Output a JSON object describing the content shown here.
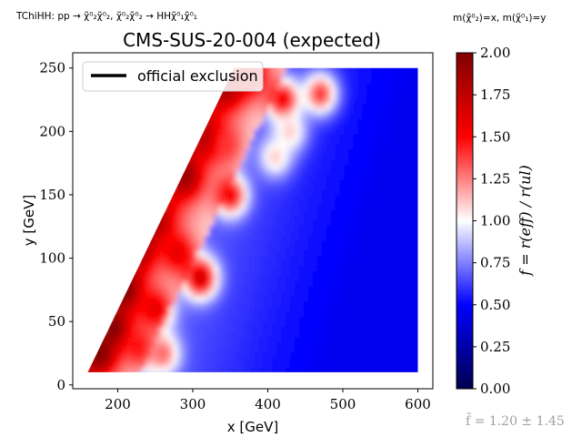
{
  "header": {
    "process_label": "TChiHH: pp → χ̃⁰₂χ̃⁰₂, χ̃⁰₂χ̃⁰₂ → HHχ̃⁰₁χ̃⁰₁",
    "mass_label": "m(χ̃⁰₂)=x, m(χ̃⁰₁)=y"
  },
  "footer": {
    "stat_label": "f̄ = 1.20 ± 1.45"
  },
  "chart_data": {
    "type": "heatmap",
    "title": "CMS-SUS-20-004 (expected)",
    "xlabel": "x [GeV]",
    "ylabel": "y [GeV]",
    "xlim": [
      140,
      620
    ],
    "ylim": [
      -3,
      262
    ],
    "xticks": [
      200,
      300,
      400,
      500,
      600
    ],
    "yticks": [
      0,
      50,
      100,
      150,
      200,
      250
    ],
    "legend": {
      "placement": "top-left",
      "entries": [
        "official exclusion"
      ]
    },
    "colorbar": {
      "label": "f = r(eff) / r(ul)",
      "range": [
        0.0,
        2.0
      ],
      "ticks": [
        "0.00",
        "0.25",
        "0.50",
        "0.75",
        "1.00",
        "1.25",
        "1.50",
        "1.75",
        "2.00"
      ],
      "colormap": "seismic"
    },
    "domain": {
      "x_min": 160,
      "x_max": 600,
      "y_min": 10,
      "y_max": 250,
      "diagonal": "y <= 1.23x - 187"
    },
    "hotspots": [
      {
        "x": 175,
        "y": 25,
        "f": 2.0
      },
      {
        "x": 195,
        "y": 45,
        "f": 2.0
      },
      {
        "x": 210,
        "y": 75,
        "f": 2.0
      },
      {
        "x": 225,
        "y": 110,
        "f": 1.95
      },
      {
        "x": 250,
        "y": 130,
        "f": 1.85
      },
      {
        "x": 290,
        "y": 165,
        "f": 1.9
      },
      {
        "x": 320,
        "y": 195,
        "f": 1.85
      },
      {
        "x": 345,
        "y": 235,
        "f": 1.85
      },
      {
        "x": 375,
        "y": 245,
        "f": 1.75
      },
      {
        "x": 310,
        "y": 85,
        "f": 1.7
      },
      {
        "x": 280,
        "y": 105,
        "f": 1.6
      },
      {
        "x": 250,
        "y": 60,
        "f": 1.6
      },
      {
        "x": 230,
        "y": 30,
        "f": 1.5
      },
      {
        "x": 260,
        "y": 25,
        "f": 1.3
      },
      {
        "x": 350,
        "y": 150,
        "f": 1.55
      },
      {
        "x": 345,
        "y": 190,
        "f": 1.4
      },
      {
        "x": 420,
        "y": 225,
        "f": 1.6
      },
      {
        "x": 470,
        "y": 230,
        "f": 1.4
      },
      {
        "x": 410,
        "y": 180,
        "f": 1.1
      },
      {
        "x": 430,
        "y": 200,
        "f": 1.1
      }
    ],
    "background_f": {
      "near": 0.85,
      "far": 0.45
    }
  }
}
